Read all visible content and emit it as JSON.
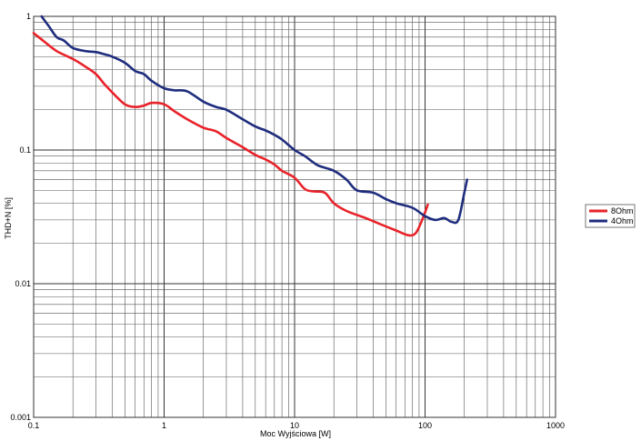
{
  "chart_data": {
    "type": "line",
    "xscale": "log",
    "yscale": "log",
    "xlim": [
      0.1,
      1000
    ],
    "ylim": [
      0.001,
      1
    ],
    "grid": true,
    "legend_position": "right",
    "xlabel": "Moc Wyjściowa [W]",
    "ylabel": "THD+N [%]",
    "x_ticks": [
      {
        "value": 0.1,
        "label": "0.1"
      },
      {
        "value": 1,
        "label": "1"
      },
      {
        "value": 10,
        "label": "10"
      },
      {
        "value": 100,
        "label": "100"
      },
      {
        "value": 1000,
        "label": "1000"
      }
    ],
    "y_ticks": [
      {
        "value": 0.001,
        "label": "0.001"
      },
      {
        "value": 0.01,
        "label": "0.01"
      },
      {
        "value": 0.1,
        "label": "0.1"
      },
      {
        "value": 1,
        "label": "1"
      }
    ],
    "series": [
      {
        "name": "8Ohm",
        "color": "#e8232a",
        "points": [
          [
            0.1,
            0.75
          ],
          [
            0.12,
            0.65
          ],
          [
            0.15,
            0.55
          ],
          [
            0.2,
            0.48
          ],
          [
            0.25,
            0.42
          ],
          [
            0.3,
            0.37
          ],
          [
            0.35,
            0.31
          ],
          [
            0.4,
            0.27
          ],
          [
            0.5,
            0.22
          ],
          [
            0.6,
            0.21
          ],
          [
            0.7,
            0.215
          ],
          [
            0.8,
            0.225
          ],
          [
            1.0,
            0.22
          ],
          [
            1.2,
            0.195
          ],
          [
            1.5,
            0.17
          ],
          [
            2.0,
            0.147
          ],
          [
            2.5,
            0.138
          ],
          [
            3.0,
            0.123
          ],
          [
            4.0,
            0.105
          ],
          [
            5.0,
            0.092
          ],
          [
            6.0,
            0.085
          ],
          [
            7.0,
            0.078
          ],
          [
            8.0,
            0.07
          ],
          [
            10.0,
            0.062
          ],
          [
            12.0,
            0.051
          ],
          [
            14.0,
            0.049
          ],
          [
            17.0,
            0.048
          ],
          [
            20.0,
            0.04
          ],
          [
            25.0,
            0.035
          ],
          [
            35.0,
            0.031
          ],
          [
            45.0,
            0.028
          ],
          [
            60.0,
            0.025
          ],
          [
            75.0,
            0.023
          ],
          [
            85.0,
            0.024
          ],
          [
            95.0,
            0.03
          ],
          [
            105.0,
            0.039
          ]
        ]
      },
      {
        "name": "4Ohm",
        "color": "#1f2d7e",
        "points": [
          [
            0.115,
            1.0
          ],
          [
            0.13,
            0.85
          ],
          [
            0.15,
            0.7
          ],
          [
            0.17,
            0.66
          ],
          [
            0.2,
            0.58
          ],
          [
            0.25,
            0.55
          ],
          [
            0.3,
            0.54
          ],
          [
            0.35,
            0.52
          ],
          [
            0.4,
            0.5
          ],
          [
            0.5,
            0.45
          ],
          [
            0.6,
            0.39
          ],
          [
            0.7,
            0.37
          ],
          [
            0.8,
            0.33
          ],
          [
            1.0,
            0.29
          ],
          [
            1.2,
            0.28
          ],
          [
            1.5,
            0.275
          ],
          [
            2.0,
            0.23
          ],
          [
            2.5,
            0.21
          ],
          [
            3.0,
            0.2
          ],
          [
            4.0,
            0.17
          ],
          [
            5.0,
            0.15
          ],
          [
            6.0,
            0.14
          ],
          [
            7.0,
            0.13
          ],
          [
            8.0,
            0.12
          ],
          [
            10.0,
            0.1
          ],
          [
            12.0,
            0.09
          ],
          [
            15.0,
            0.077
          ],
          [
            20.0,
            0.07
          ],
          [
            25.0,
            0.06
          ],
          [
            30.0,
            0.05
          ],
          [
            40.0,
            0.048
          ],
          [
            50.0,
            0.043
          ],
          [
            60.0,
            0.04
          ],
          [
            80.0,
            0.037
          ],
          [
            100.0,
            0.032
          ],
          [
            120.0,
            0.03
          ],
          [
            140.0,
            0.031
          ],
          [
            160.0,
            0.029
          ],
          [
            180.0,
            0.03
          ],
          [
            200.0,
            0.048
          ],
          [
            210.0,
            0.06
          ]
        ]
      }
    ]
  }
}
